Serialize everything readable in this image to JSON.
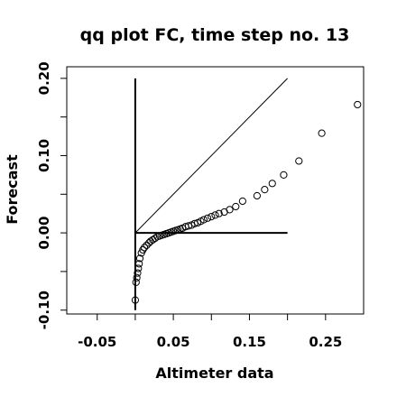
{
  "chart_data": {
    "type": "scatter",
    "title": "qq plot FC, time step no. 13",
    "xlabel": "Altimeter data",
    "ylabel": "Forecast",
    "xlim": [
      -0.09,
      0.3
    ],
    "ylim": [
      -0.105,
      0.215
    ],
    "x_ticks": [
      {
        "value": -0.05,
        "label": "-0.05"
      },
      {
        "value": 0.0,
        "label": ""
      },
      {
        "value": 0.05,
        "label": "0.05"
      },
      {
        "value": 0.1,
        "label": ""
      },
      {
        "value": 0.15,
        "label": "0.15"
      },
      {
        "value": 0.2,
        "label": ""
      },
      {
        "value": 0.25,
        "label": "0.25"
      }
    ],
    "y_ticks": [
      {
        "value": -0.1,
        "label": "-0.10"
      },
      {
        "value": -0.05,
        "label": ""
      },
      {
        "value": 0.0,
        "label": "0.00"
      },
      {
        "value": 0.05,
        "label": ""
      },
      {
        "value": 0.1,
        "label": "0.10"
      },
      {
        "value": 0.15,
        "label": ""
      },
      {
        "value": 0.2,
        "label": "0.20"
      }
    ],
    "grid": false,
    "reference_lines": [
      {
        "kind": "diagonal",
        "x": [
          0.0,
          0.2
        ],
        "y": [
          0.0,
          0.2
        ]
      },
      {
        "kind": "horizontal",
        "x": [
          0.0,
          0.2
        ],
        "y": [
          0.0,
          0.0
        ]
      },
      {
        "kind": "vertical",
        "x": [
          0.0,
          0.0
        ],
        "y": [
          -0.1,
          0.2
        ]
      }
    ],
    "points": {
      "x": [
        0.0,
        0.001,
        0.002,
        0.003,
        0.004,
        0.005,
        0.006,
        0.008,
        0.01,
        0.012,
        0.015,
        0.018,
        0.02,
        0.023,
        0.026,
        0.029,
        0.032,
        0.035,
        0.038,
        0.041,
        0.044,
        0.047,
        0.05,
        0.053,
        0.056,
        0.059,
        0.062,
        0.066,
        0.07,
        0.074,
        0.078,
        0.082,
        0.086,
        0.09,
        0.095,
        0.1,
        0.105,
        0.11,
        0.117,
        0.124,
        0.132,
        0.141,
        0.16,
        0.17,
        0.18,
        0.195,
        0.215,
        0.245,
        0.292
      ],
      "y": [
        -0.087,
        -0.064,
        -0.058,
        -0.052,
        -0.046,
        -0.04,
        -0.033,
        -0.026,
        -0.022,
        -0.019,
        -0.016,
        -0.013,
        -0.011,
        -0.009,
        -0.007,
        -0.005,
        -0.004,
        -0.003,
        -0.002,
        -0.001,
        0.0,
        0.001,
        0.002,
        0.003,
        0.004,
        0.005,
        0.006,
        0.008,
        0.009,
        0.01,
        0.012,
        0.013,
        0.015,
        0.017,
        0.019,
        0.021,
        0.023,
        0.025,
        0.027,
        0.03,
        0.034,
        0.041,
        0.048,
        0.056,
        0.064,
        0.075,
        0.093,
        0.129,
        0.166
      ]
    }
  }
}
